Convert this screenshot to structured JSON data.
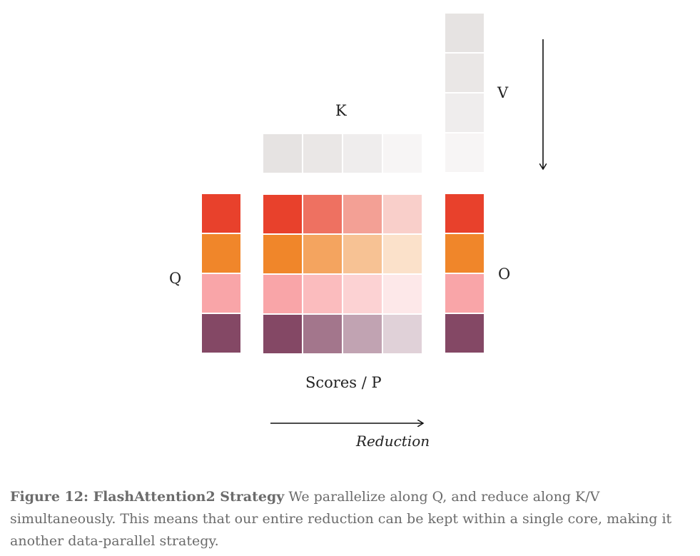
{
  "labels": {
    "k": "K",
    "v": "V",
    "q": "Q",
    "o": "O",
    "scores": "Scores / P",
    "reduction": "Reduction"
  },
  "colors": {
    "row_colors": [
      "#e8412c",
      "#f0862a",
      "#f9a5a8",
      "#844865"
    ],
    "k_tiles": [
      "#e6e3e2",
      "#eae7e6",
      "#efeded",
      "#f7f5f5"
    ],
    "v_tiles": [
      "#e6e3e2",
      "#eae7e6",
      "#efeded",
      "#f7f5f5"
    ],
    "score_opacity_by_column": [
      1.0,
      0.75,
      0.5,
      0.25
    ],
    "arrow": "#111111"
  },
  "caption": {
    "title": "Figure 12: FlashAttention2 Strategy",
    "text": " We parallelize along Q, and reduce along K/V simultaneously. This means that our entire reduction can be kept within a single core, making it another data-parallel strategy."
  }
}
